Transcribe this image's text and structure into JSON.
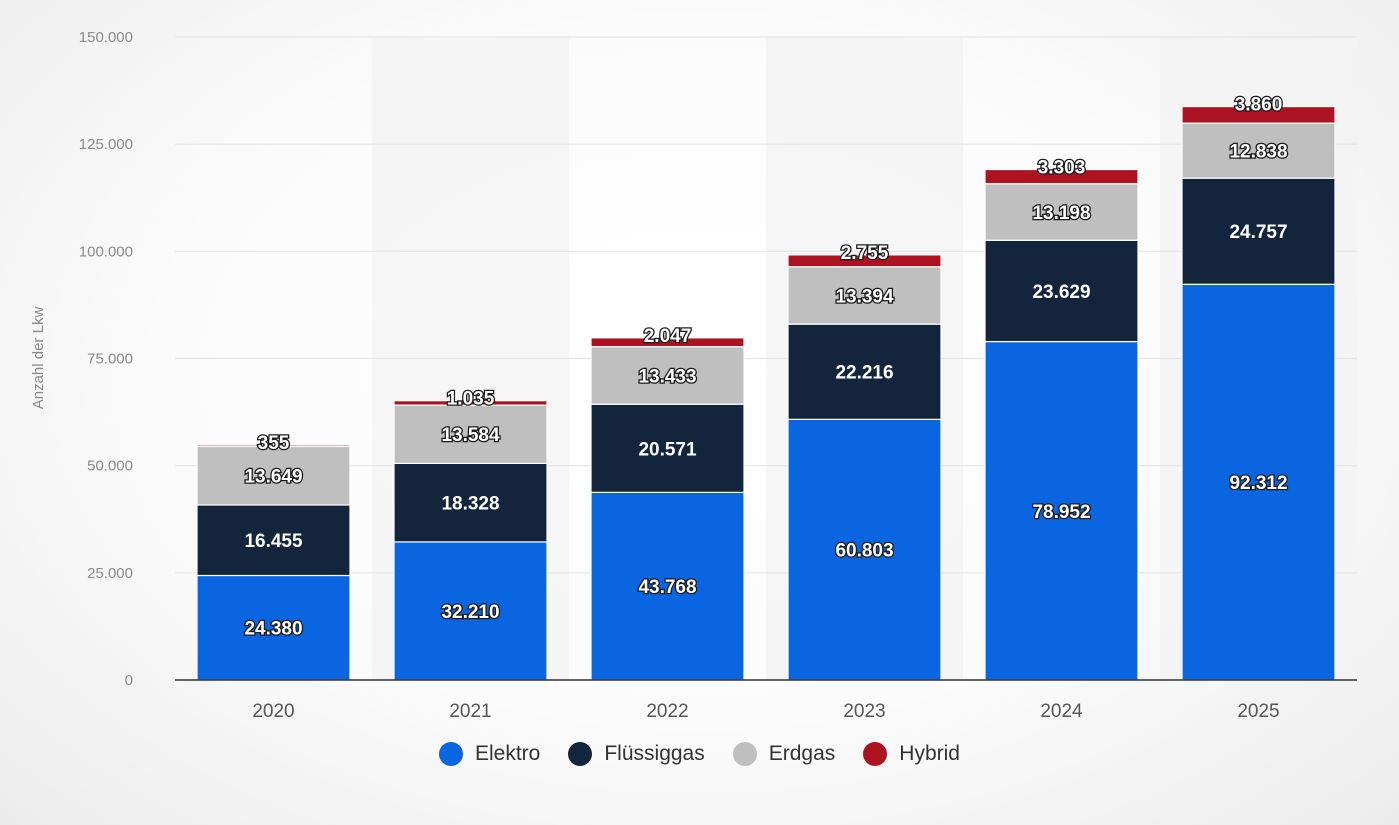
{
  "chart_data": {
    "type": "bar",
    "stacked": true,
    "title": "",
    "xlabel": "",
    "ylabel": "Anzahl der Lkw",
    "ylim": [
      0,
      150000
    ],
    "yticks": [
      {
        "value": 0,
        "label": "0"
      },
      {
        "value": 25000,
        "label": "25.000"
      },
      {
        "value": 50000,
        "label": "50.000"
      },
      {
        "value": 75000,
        "label": "75.000"
      },
      {
        "value": 100000,
        "label": "100.000"
      },
      {
        "value": 125000,
        "label": "125.000"
      },
      {
        "value": 150000,
        "label": "150.000"
      }
    ],
    "grid": true,
    "legend_position": "bottom",
    "categories": [
      "2020",
      "2021",
      "2022",
      "2023",
      "2024",
      "2025"
    ],
    "series": [
      {
        "name": "Elektro",
        "color": "#0a66e0",
        "values": [
          24380,
          32210,
          43768,
          60803,
          78952,
          92312
        ],
        "labels": [
          "24.380",
          "32.210",
          "43.768",
          "60.803",
          "78.952",
          "92.312"
        ]
      },
      {
        "name": "Flüssiggas",
        "color": "#13243d",
        "values": [
          16455,
          18328,
          20571,
          22216,
          23629,
          24757
        ],
        "labels": [
          "16.455",
          "18.328",
          "20.571",
          "22.216",
          "23.629",
          "24.757"
        ]
      },
      {
        "name": "Erdgas",
        "color": "#bfbfbf",
        "values": [
          13649,
          13584,
          13433,
          13394,
          13198,
          12838
        ],
        "labels": [
          "13.649",
          "13.584",
          "13.433",
          "13.394",
          "13.198",
          "12.838"
        ]
      },
      {
        "name": "Hybrid",
        "color": "#ad1220",
        "values": [
          355,
          1035,
          2047,
          2755,
          3303,
          3860
        ],
        "labels": [
          "355",
          "1.035",
          "2.047",
          "2.755",
          "3.303",
          "3.860"
        ]
      }
    ]
  }
}
